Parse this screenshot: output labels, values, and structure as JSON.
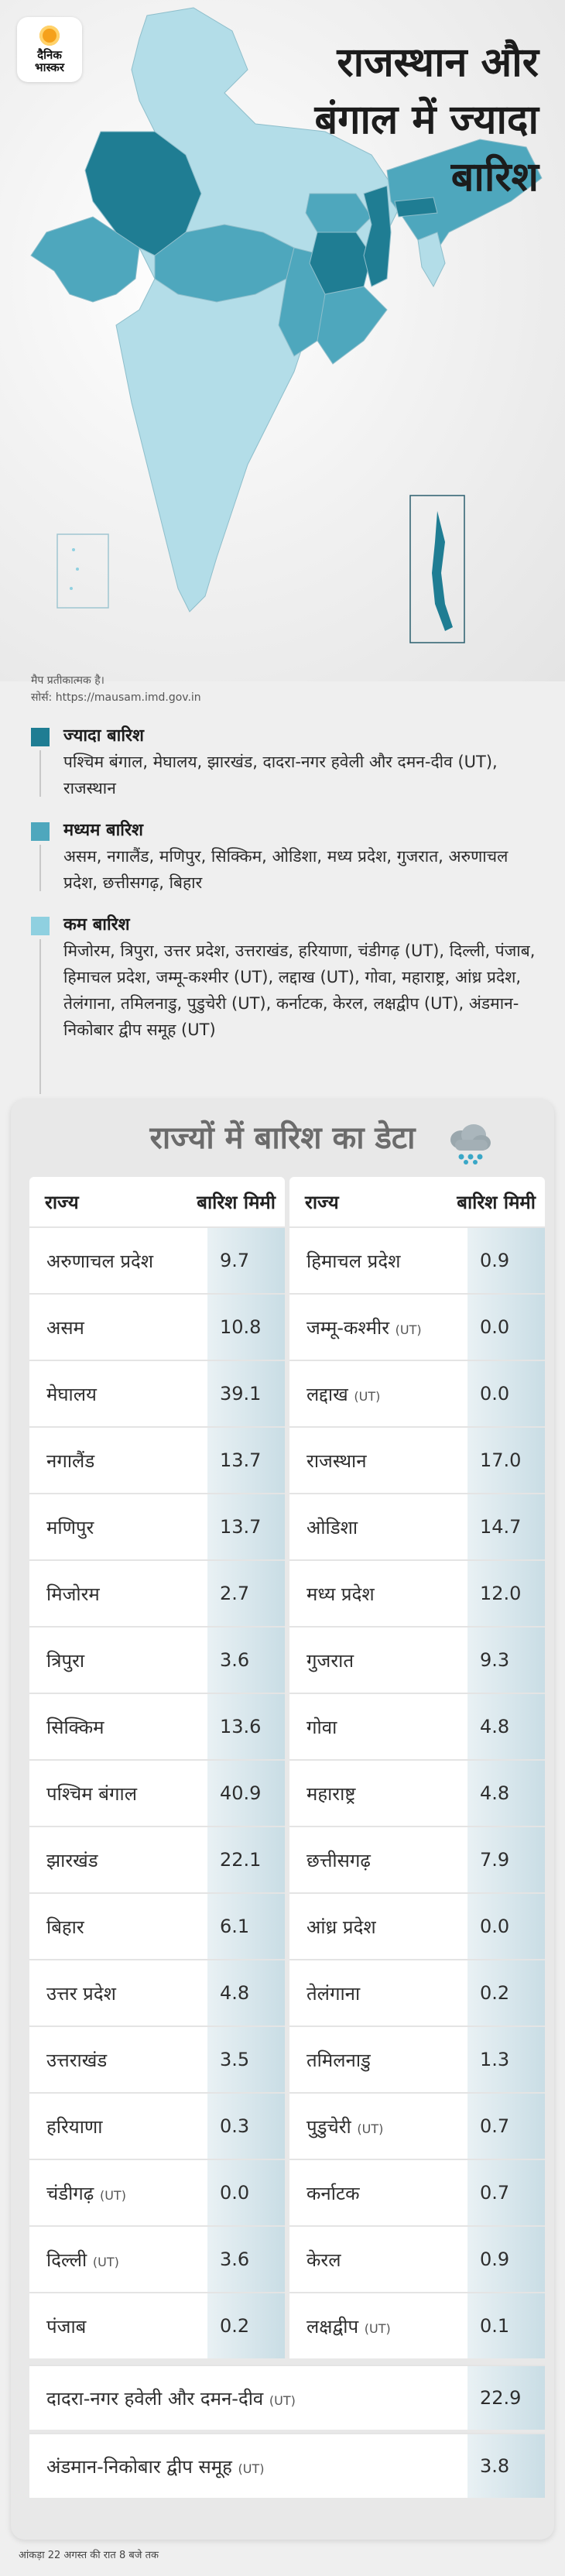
{
  "brand": {
    "line1": "दैनिक",
    "line2": "भास्कर"
  },
  "headline": {
    "line1": "राजस्थान और",
    "line2": "बंगाल में ज्यादा",
    "line3": "बारिश"
  },
  "map_note": {
    "line1": "मैप प्रतीकात्मक है।",
    "line2": "सोर्स: https://mausam.imd.gov.in"
  },
  "colors": {
    "heavy": "#1f7d93",
    "medium": "#4ea7bd",
    "low": "#8fd0e0"
  },
  "legend": [
    {
      "title": "ज्यादा बारिश",
      "text": "पश्चिम बंगाल, मेघालय, झारखंड, दादरा-नगर हवेली और दमन-दीव (UT), राजस्थान"
    },
    {
      "title": "मध्यम बारिश",
      "text": "असम, नगालैंड, मणिपुर, सिक्किम, ओडिशा, मध्य प्रदेश, गुजरात, अरुणाचल प्रदेश, छत्तीसगढ़, बिहार"
    },
    {
      "title": "कम बारिश",
      "text": "मिजोरम, त्रिपुरा, उत्तर प्रदेश, उत्तराखंड, हरियाणा, चंडीगढ़ (UT), दिल्ली, पंजाब, हिमाचल प्रदेश, जम्मू-कश्मीर (UT), लद्दाख (UT), गोवा, महाराष्ट्र, आंध्र प्रदेश, तेलंगाना, तमिलनाडु, पुडुचेरी (UT), कर्नाटक, केरल, लक्षद्वीप (UT), अंडमान-निकोबार द्वीप समूह (UT)"
    }
  ],
  "table": {
    "title": "राज्यों में बारिश का डेटा",
    "col_state": "राज्य",
    "col_rain": "बारिश मिमी",
    "left": [
      {
        "name": "अरुणाचल प्रदेश",
        "ut": "",
        "value": "9.7"
      },
      {
        "name": "असम",
        "ut": "",
        "value": "10.8"
      },
      {
        "name": "मेघालय",
        "ut": "",
        "value": "39.1"
      },
      {
        "name": "नगालैंड",
        "ut": "",
        "value": "13.7"
      },
      {
        "name": "मणिपुर",
        "ut": "",
        "value": "13.7"
      },
      {
        "name": "मिजोरम",
        "ut": "",
        "value": "2.7"
      },
      {
        "name": "त्रिपुरा",
        "ut": "",
        "value": "3.6"
      },
      {
        "name": "सिक्किम",
        "ut": "",
        "value": "13.6"
      },
      {
        "name": "पश्चिम बंगाल",
        "ut": "",
        "value": "40.9"
      },
      {
        "name": "झारखंड",
        "ut": "",
        "value": "22.1"
      },
      {
        "name": "बिहार",
        "ut": "",
        "value": "6.1"
      },
      {
        "name": "उत्तर प्रदेश",
        "ut": "",
        "value": "4.8"
      },
      {
        "name": "उत्तराखंड",
        "ut": "",
        "value": "3.5"
      },
      {
        "name": "हरियाणा",
        "ut": "",
        "value": "0.3"
      },
      {
        "name": "चंडीगढ़",
        "ut": "(UT)",
        "value": "0.0"
      },
      {
        "name": "दिल्ली",
        "ut": "(UT)",
        "value": "3.6"
      },
      {
        "name": "पंजाब",
        "ut": "",
        "value": "0.2"
      }
    ],
    "right": [
      {
        "name": "हिमाचल प्रदेश",
        "ut": "",
        "value": "0.9"
      },
      {
        "name": "जम्मू-कश्मीर",
        "ut": "(UT)",
        "value": "0.0"
      },
      {
        "name": "लद्दाख",
        "ut": "(UT)",
        "value": "0.0"
      },
      {
        "name": "राजस्थान",
        "ut": "",
        "value": "17.0"
      },
      {
        "name": "ओडिशा",
        "ut": "",
        "value": "14.7"
      },
      {
        "name": "मध्य प्रदेश",
        "ut": "",
        "value": "12.0"
      },
      {
        "name": "गुजरात",
        "ut": "",
        "value": "9.3"
      },
      {
        "name": "गोवा",
        "ut": "",
        "value": "4.8"
      },
      {
        "name": "महाराष्ट्र",
        "ut": "",
        "value": "4.8"
      },
      {
        "name": "छत्तीसगढ़",
        "ut": "",
        "value": "7.9"
      },
      {
        "name": "आंध्र प्रदेश",
        "ut": "",
        "value": "0.0"
      },
      {
        "name": "तेलंगाना",
        "ut": "",
        "value": "0.2"
      },
      {
        "name": "तमिलनाडु",
        "ut": "",
        "value": "1.3"
      },
      {
        "name": "पुडुचेरी",
        "ut": "(UT)",
        "value": "0.7"
      },
      {
        "name": "कर्नाटक",
        "ut": "",
        "value": "0.7"
      },
      {
        "name": "केरल",
        "ut": "",
        "value": "0.9"
      },
      {
        "name": "लक्षद्वीप",
        "ut": "(UT)",
        "value": "0.1"
      }
    ],
    "wide": [
      {
        "name": "दादरा-नगर हवेली और दमन-दीव",
        "ut": "(UT)",
        "value": "22.9"
      },
      {
        "name": "अंडमान-निकोबार द्वीप समूह",
        "ut": "(UT)",
        "value": "3.8"
      }
    ]
  },
  "footer": "आंकड़ा 22 अगस्त की रात 8 बजे तक"
}
